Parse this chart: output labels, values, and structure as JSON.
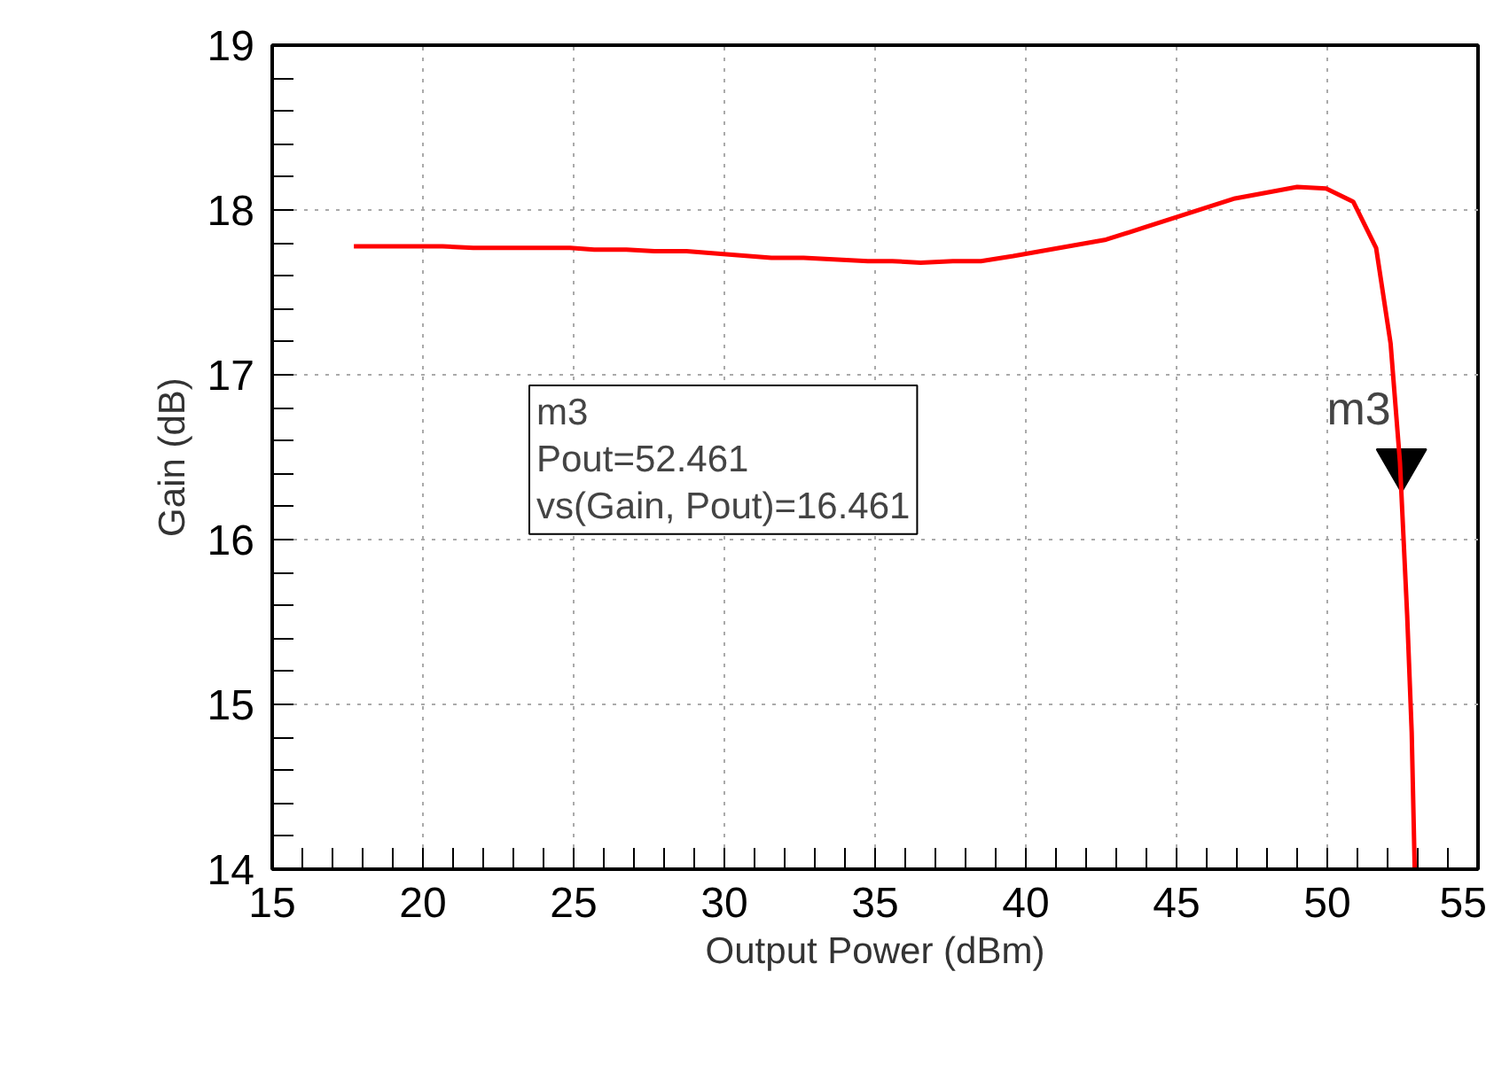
{
  "chart_data": {
    "type": "line",
    "xlabel": "Output Power (dBm)",
    "ylabel": "Gain (dB)",
    "x": [
      17.71,
      20.65,
      21.67,
      24.88,
      25.68,
      26.75,
      27.68,
      28.75,
      31.56,
      32.63,
      34.76,
      35.57,
      36.51,
      37.58,
      38.51,
      39.58,
      42.66,
      46.94,
      49.0,
      49.96,
      50.86,
      51.62,
      52.1,
      52.41,
      52.65,
      52.8,
      52.9
    ],
    "series": [
      {
        "color": "#ff0000",
        "values": [
          17.78,
          17.78,
          17.77,
          17.77,
          17.76,
          17.76,
          17.75,
          17.75,
          17.71,
          17.71,
          17.69,
          17.69,
          17.68,
          17.69,
          17.69,
          17.72,
          17.82,
          18.07,
          18.14,
          18.13,
          18.05,
          17.77,
          17.19,
          16.47,
          15.54,
          14.83,
          14.0
        ]
      }
    ],
    "xlim": [
      15,
      55
    ],
    "ylim": [
      14,
      19
    ],
    "xticks": [
      15,
      20,
      25,
      30,
      35,
      40,
      45,
      50,
      55
    ],
    "yticks": [
      14,
      15,
      16,
      17,
      18,
      19
    ],
    "grid": true,
    "marker": "none",
    "line_style": "solid",
    "annotations": [
      {
        "text": "m3",
        "x": 52.461,
        "y": 16.461
      },
      "m3",
      "Pout=52.461",
      "vs(Gain, Pout)=16.461"
    ]
  }
}
